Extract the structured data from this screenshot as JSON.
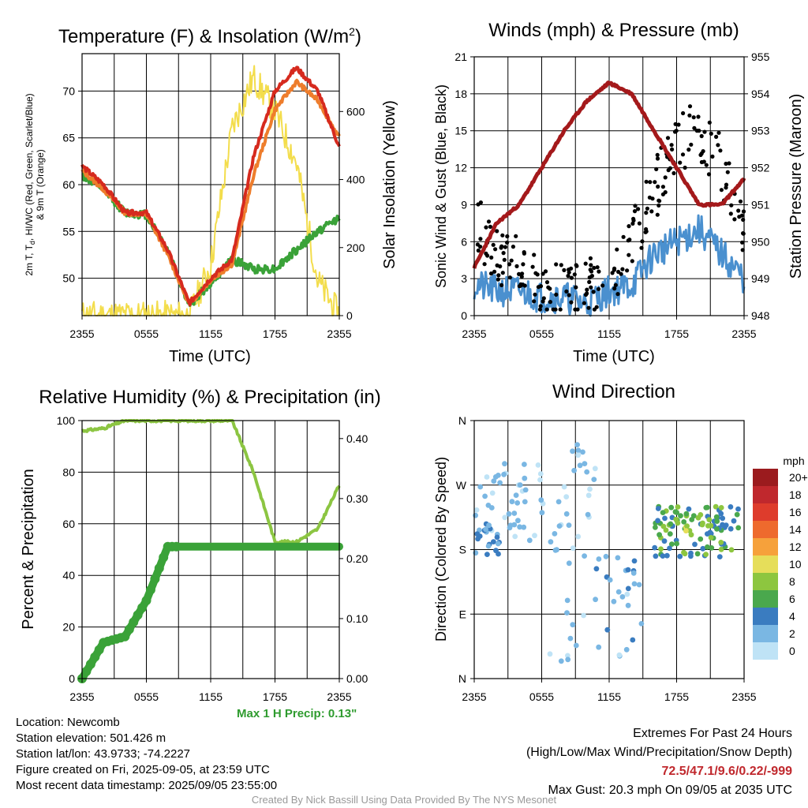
{
  "panels": {
    "temperature": {
      "title": "Temperature (F) & Insolation (W/m",
      "title_sup": "2",
      "title_close": ")",
      "ylabel_left_line1": "2m T, T",
      "ylabel_left_sub": "d",
      "ylabel_left_line1_rest": ", HI/WC (Red, Green, Scarlet/Blue)",
      "ylabel_left_line2": "& 9m T (Orange)",
      "ylabel_right": "Solar Insolation (Yellow)",
      "xlabel": "Time (UTC)"
    },
    "winds": {
      "title": "Winds (mph) & Pressure (mb)",
      "ylabel_left": "Sonic Wind & Gust (Blue, Black)",
      "ylabel_right": "Station Pressure (Maroon)",
      "xlabel": "Time (UTC)"
    },
    "humidity": {
      "title": "Relative Humidity (%) & Precipitation (in)",
      "ylabel_left": "Percent & Precipitation",
      "precip_note": "Max 1 H Precip: 0.13\""
    },
    "direction": {
      "title": "Wind Direction",
      "ylabel_left": "Direction (Colored By Speed)",
      "legend_title": "mph",
      "legend_labels": [
        "20+",
        "18",
        "16",
        "14",
        "12",
        "10",
        "8",
        "6",
        "4",
        "2",
        "0"
      ],
      "legend_colors": [
        "#9b1b1e",
        "#c0282d",
        "#de3c2c",
        "#ee6a2d",
        "#f6a13b",
        "#e6de5a",
        "#8dc63f",
        "#4aa84d",
        "#3a7cc0",
        "#7ab7e3",
        "#bfe3f6"
      ]
    }
  },
  "info": {
    "location": "Location: Newcomb",
    "elevation": "Station elevation: 501.426 m",
    "latlon": "Station lat/lon: 43.9733; -74.2227",
    "created": "Figure created on Fri, 2025-09-05, at 23:59 UTC",
    "recent": "Most recent data timestamp: 2025/09/05 23:55:00"
  },
  "extremes": {
    "heading": "Extremes For Past 24 Hours",
    "subheading": "(High/Low/Max Wind/Precipitation/Snow Depth)",
    "values": "72.5/47.1/9.6/0.22/-999",
    "max_gust": "Max Gust: 20.3 mph On 09/05 at 2035 UTC"
  },
  "credit": "Created By Nick Bassill Using Data Provided By The NYS Mesonet",
  "chart_data": [
    {
      "type": "line",
      "title": "Temperature (F) & Insolation (W/m2)",
      "xlabel": "Time (UTC)",
      "x": [
        "2355",
        "0155",
        "0355",
        "0555",
        "0755",
        "0955",
        "1155",
        "1355",
        "1555",
        "1755",
        "1955",
        "2155",
        "2355"
      ],
      "x_ticks": [
        "2355",
        "0555",
        "1155",
        "1755",
        "2355"
      ],
      "ylim_left": [
        46,
        74
      ],
      "yticks_left": [
        50,
        55,
        60,
        65,
        70
      ],
      "ylim_right": [
        0,
        770
      ],
      "yticks_right": [
        0,
        200,
        400,
        600
      ],
      "series": [
        {
          "color": "#d62a1e",
          "axis": "left",
          "values": [
            62,
            60,
            57,
            57,
            53,
            47.3,
            50,
            52,
            63,
            70,
            72.5,
            70,
            64
          ]
        },
        {
          "color": "#ee7d2c",
          "axis": "left",
          "values": [
            61.5,
            59.5,
            57,
            56.8,
            52.5,
            47.2,
            49.8,
            51.5,
            61,
            68,
            71,
            69,
            65
          ]
        },
        {
          "color": "#3aa238",
          "axis": "left",
          "values": [
            61,
            59.5,
            57,
            56.8,
            53,
            47.1,
            49.5,
            52,
            51,
            51,
            53,
            55,
            56.5
          ]
        },
        {
          "color": "#f3dd4c",
          "axis": "right",
          "values": [
            0,
            0,
            0,
            0,
            0,
            0,
            150,
            550,
            700,
            600,
            450,
            100,
            0
          ]
        }
      ],
      "grid": true
    },
    {
      "type": "line",
      "title": "Winds (mph) & Pressure (mb)",
      "xlabel": "Time (UTC)",
      "x": [
        "2355",
        "0155",
        "0355",
        "0555",
        "0755",
        "0955",
        "1155",
        "1355",
        "1555",
        "1755",
        "1955",
        "2155",
        "2355"
      ],
      "x_ticks": [
        "2355",
        "0555",
        "1155",
        "1755",
        "2355"
      ],
      "ylim_left": [
        0,
        21
      ],
      "yticks_left": [
        0,
        3,
        6,
        9,
        12,
        15,
        18,
        21
      ],
      "ylim_right": [
        948,
        955
      ],
      "yticks_right": [
        948,
        949,
        950,
        951,
        952,
        953,
        954,
        955
      ],
      "series": [
        {
          "color": "#4a90cf",
          "axis": "left",
          "values": [
            2.5,
            2,
            2,
            1.5,
            1.5,
            1,
            2,
            2.5,
            5,
            6,
            7,
            5,
            3
          ]
        },
        {
          "color": "#000000",
          "axis": "left",
          "values": [
            8,
            5,
            4,
            2.5,
            2,
            2,
            3,
            6,
            10,
            14,
            15,
            12,
            6
          ]
        },
        {
          "color": "#a4191b",
          "axis": "right",
          "values": [
            949.3,
            950.5,
            951,
            952,
            953,
            953.8,
            954.3,
            954,
            953,
            952,
            951,
            951,
            951.7
          ]
        }
      ],
      "grid": true
    },
    {
      "type": "line",
      "title": "Relative Humidity (%) & Precipitation (in)",
      "x": [
        "2355",
        "0155",
        "0355",
        "0555",
        "0755",
        "0955",
        "1155",
        "1355",
        "1555",
        "1755",
        "1955",
        "2155",
        "2355"
      ],
      "x_ticks": [
        "2355",
        "0555",
        "1155",
        "1755",
        "2355"
      ],
      "ylim_left": [
        0,
        100
      ],
      "yticks_left": [
        0,
        20,
        40,
        60,
        80,
        100
      ],
      "ylim_right": [
        0,
        0.43
      ],
      "yticks_right": [
        "0.00",
        "0.10",
        "0.20",
        "0.30",
        "0.40"
      ],
      "series": [
        {
          "color": "#8cc542",
          "axis": "left",
          "values": [
            96,
            97,
            100,
            100,
            100,
            100,
            100,
            100,
            80,
            53,
            53,
            58,
            75
          ]
        },
        {
          "color": "#3aa238",
          "axis": "right",
          "values": [
            0,
            0.06,
            0.07,
            0.13,
            0.22,
            0.22,
            0.22,
            0.22,
            0.22,
            0.22,
            0.22,
            0.22,
            0.22
          ]
        }
      ],
      "grid": true
    },
    {
      "type": "scatter",
      "title": "Wind Direction",
      "x_ticks": [
        "2355",
        "0555",
        "1155",
        "1755",
        "2355"
      ],
      "yticks": [
        "N",
        "E",
        "S",
        "W",
        "N"
      ],
      "legend_title": "mph",
      "grid": true
    }
  ]
}
